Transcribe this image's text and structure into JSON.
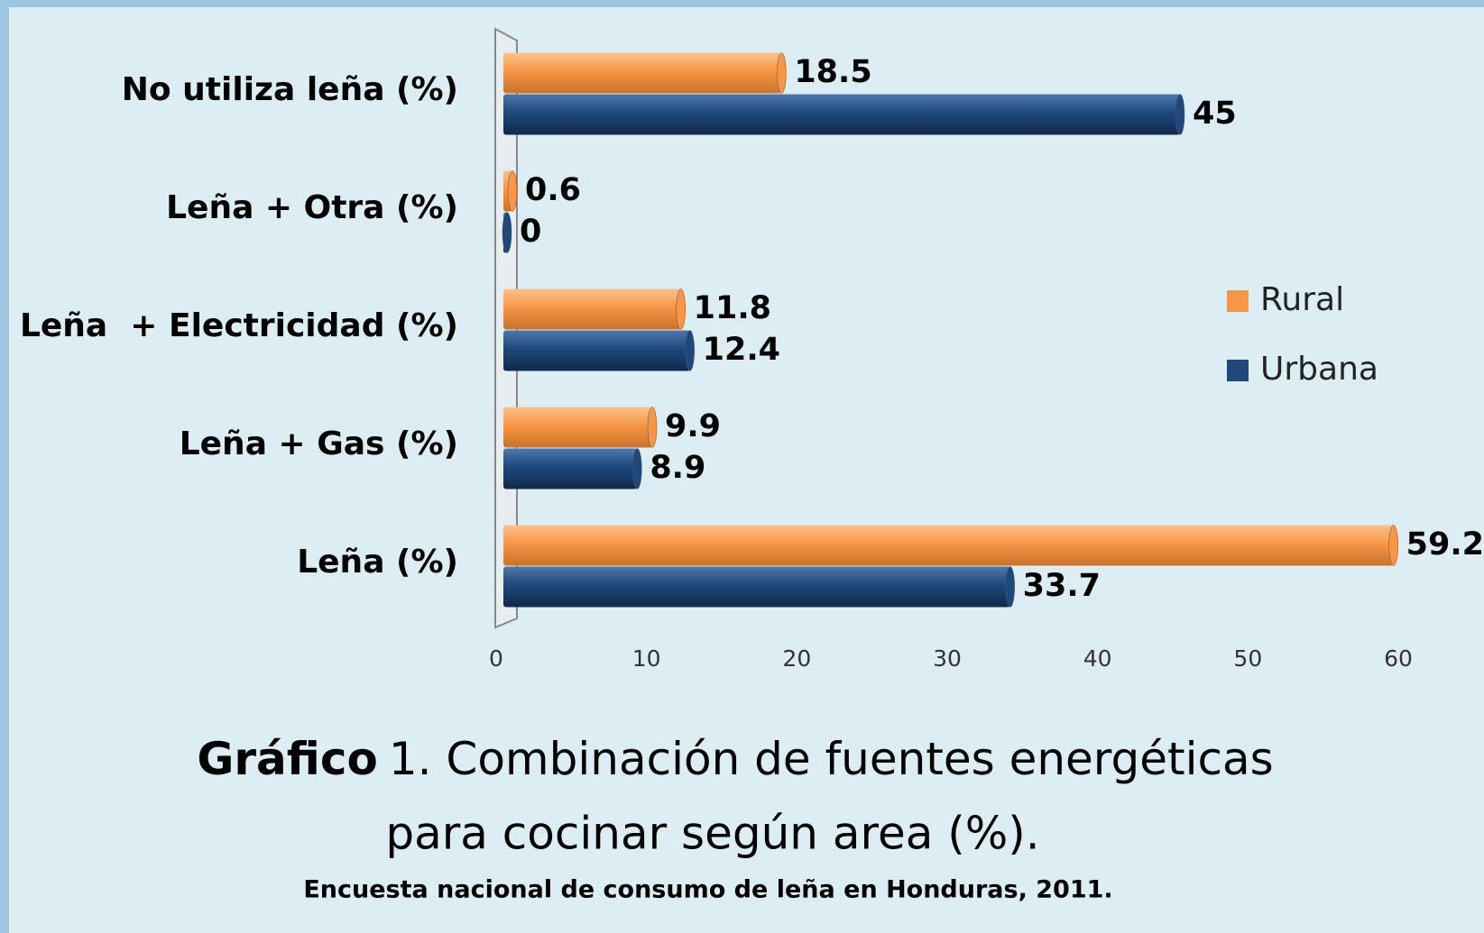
{
  "chart_data": {
    "type": "bar",
    "orientation": "horizontal",
    "title": [
      "Gráfico",
      "1. Combinación de fuentes energéticas",
      "para cocinar según area (%)."
    ],
    "subtitle": "Encuesta nacional de consumo de leña en Honduras, 2011.",
    "categories": [
      "No utiliza leña (%)",
      "Leña + Otra (%)",
      "Leña  + Electricidad (%)",
      "Leña + Gas (%)",
      "Leña (%)"
    ],
    "series": [
      {
        "name": "Rural",
        "color": "#f79646",
        "values": [
          18.5,
          0.6,
          11.8,
          9.9,
          59.2
        ]
      },
      {
        "name": "Urbana",
        "color": "#1f497d",
        "values": [
          45,
          0,
          12.4,
          8.9,
          33.7
        ]
      }
    ],
    "xlim": [
      0,
      60
    ],
    "xticks": [
      0,
      10,
      20,
      30,
      40,
      50,
      60
    ],
    "grid": false,
    "legend": "right"
  }
}
